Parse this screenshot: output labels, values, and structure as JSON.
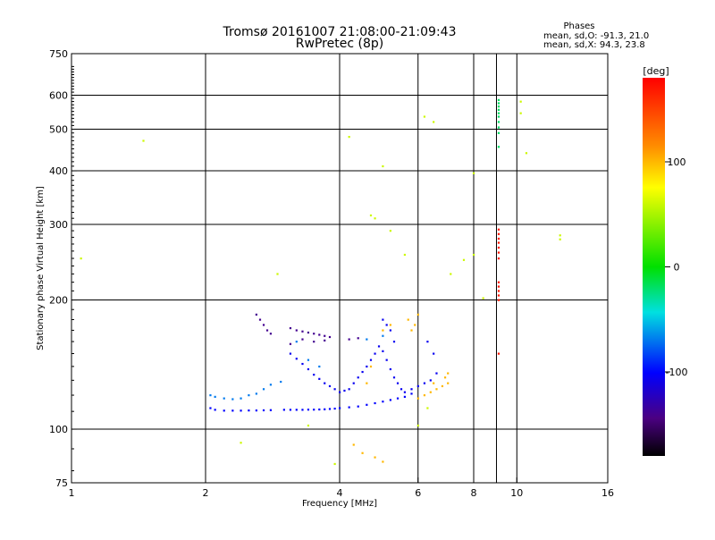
{
  "header": {
    "title_line1": "Tromsø 20161007 21:08:00-21:09:43",
    "title_line2": "RwPretec (8p)",
    "stats_heading": "Phases",
    "stats_o": "mean, sd,O: -91.3, 21.0",
    "stats_x": "mean, sd,X:  94.3, 23.8"
  },
  "colorbar": {
    "label": "[deg]",
    "ticks": [
      "100",
      "0",
      "-100"
    ]
  },
  "chart_data": {
    "type": "scatter",
    "xlabel": "Frequency [MHz]",
    "ylabel": "Stationary phase Virtual Height [km]",
    "x_scale": "log",
    "y_scale": "log",
    "xlim": [
      1,
      16
    ],
    "ylim": [
      75,
      750
    ],
    "x_ticks": [
      "1",
      "2",
      "4",
      "6",
      "8",
      "10",
      "16"
    ],
    "y_ticks": [
      "75",
      "100",
      "200",
      "300",
      "400",
      "500",
      "600",
      "750"
    ],
    "x_grid": [
      2,
      4,
      6,
      8,
      9,
      10
    ],
    "y_grid": [
      100,
      200,
      300,
      400,
      500,
      600
    ],
    "color_range_deg": [
      -180,
      180
    ],
    "series": [
      {
        "trace": "main-trace",
        "phase": -100,
        "points": [
          [
            2.05,
            112
          ],
          [
            2.1,
            111
          ],
          [
            2.2,
            110.5
          ],
          [
            2.3,
            110.5
          ],
          [
            2.4,
            110.5
          ],
          [
            2.5,
            110.6
          ],
          [
            2.6,
            110.6
          ],
          [
            2.7,
            110.7
          ],
          [
            2.8,
            110.8
          ],
          [
            3.0,
            111
          ],
          [
            3.1,
            111
          ],
          [
            3.2,
            111
          ],
          [
            3.3,
            111
          ],
          [
            3.4,
            111.1
          ],
          [
            3.5,
            111.1
          ],
          [
            3.6,
            111.2
          ],
          [
            3.7,
            111.3
          ],
          [
            3.8,
            111.5
          ],
          [
            3.9,
            111.7
          ],
          [
            4.0,
            112
          ],
          [
            4.2,
            112.5
          ],
          [
            4.4,
            113
          ],
          [
            4.6,
            114
          ],
          [
            4.8,
            115
          ],
          [
            5.0,
            116
          ],
          [
            5.2,
            117
          ],
          [
            5.4,
            118
          ],
          [
            5.6,
            119
          ],
          [
            5.8,
            121
          ]
        ]
      },
      {
        "trace": "light-trace",
        "phase": -70,
        "points": [
          [
            2.05,
            120
          ],
          [
            2.1,
            119
          ],
          [
            2.2,
            118
          ],
          [
            2.3,
            117.5
          ],
          [
            2.4,
            118
          ],
          [
            2.5,
            120
          ],
          [
            2.6,
            121
          ],
          [
            2.7,
            124
          ],
          [
            2.8,
            127
          ],
          [
            2.95,
            129
          ],
          [
            3.2,
            160
          ],
          [
            3.4,
            145
          ],
          [
            3.6,
            140
          ],
          [
            4.6,
            162
          ],
          [
            5.0,
            165
          ]
        ]
      },
      {
        "trace": "purple-patch",
        "phase": -140,
        "points": [
          [
            3.1,
            172
          ],
          [
            3.2,
            170
          ],
          [
            3.3,
            169
          ],
          [
            3.4,
            168
          ],
          [
            3.5,
            167
          ],
          [
            3.6,
            166
          ],
          [
            3.7,
            165
          ],
          [
            3.8,
            164
          ],
          [
            3.3,
            162
          ],
          [
            3.5,
            160
          ],
          [
            3.1,
            158
          ],
          [
            3.7,
            161
          ],
          [
            4.2,
            162
          ],
          [
            4.4,
            163
          ],
          [
            2.6,
            185
          ],
          [
            2.65,
            180
          ],
          [
            2.7,
            175
          ],
          [
            2.75,
            170
          ],
          [
            2.8,
            167
          ]
        ]
      },
      {
        "trace": "mid-cloud",
        "phase": -105,
        "points": [
          [
            3.1,
            150
          ],
          [
            3.2,
            146
          ],
          [
            3.3,
            142
          ],
          [
            3.4,
            138
          ],
          [
            3.5,
            134
          ],
          [
            3.6,
            131
          ],
          [
            3.7,
            128
          ],
          [
            3.8,
            126
          ],
          [
            3.9,
            124
          ],
          [
            4.0,
            122
          ],
          [
            4.1,
            123
          ],
          [
            4.2,
            124
          ],
          [
            4.3,
            128
          ],
          [
            4.4,
            132
          ],
          [
            4.5,
            136
          ],
          [
            4.6,
            140
          ],
          [
            4.7,
            145
          ],
          [
            4.8,
            150
          ],
          [
            4.9,
            156
          ],
          [
            5.0,
            152
          ],
          [
            5.1,
            145
          ],
          [
            5.2,
            138
          ],
          [
            5.3,
            132
          ],
          [
            5.4,
            128
          ],
          [
            5.5,
            124
          ],
          [
            5.6,
            122
          ],
          [
            5.8,
            124
          ],
          [
            6.0,
            126
          ],
          [
            6.2,
            128
          ],
          [
            6.4,
            130
          ],
          [
            6.6,
            135
          ],
          [
            5.0,
            180
          ],
          [
            5.1,
            175
          ],
          [
            5.2,
            170
          ],
          [
            5.3,
            160
          ],
          [
            6.5,
            150
          ],
          [
            6.3,
            160
          ]
        ]
      },
      {
        "trace": "warm-cloud",
        "phase": 100,
        "points": [
          [
            6.0,
            118
          ],
          [
            6.2,
            120
          ],
          [
            6.4,
            122
          ],
          [
            6.6,
            124
          ],
          [
            6.8,
            126
          ],
          [
            7.0,
            128
          ],
          [
            6.5,
            128
          ],
          [
            6.9,
            132
          ],
          [
            7.0,
            135
          ],
          [
            5.8,
            170
          ],
          [
            5.9,
            175
          ],
          [
            5.7,
            180
          ],
          [
            6.0,
            185
          ],
          [
            5.0,
            170
          ],
          [
            5.2,
            175
          ],
          [
            4.6,
            128
          ],
          [
            4.7,
            140
          ],
          [
            4.5,
            88
          ],
          [
            4.8,
            86
          ],
          [
            5.0,
            84
          ],
          [
            4.3,
            92
          ]
        ]
      },
      {
        "trace": "column-9mhz",
        "phase": -20,
        "points": [
          [
            9.1,
            585
          ],
          [
            9.1,
            575
          ],
          [
            9.1,
            565
          ],
          [
            9.1,
            555
          ],
          [
            9.1,
            545
          ],
          [
            9.1,
            535
          ],
          [
            9.1,
            520
          ],
          [
            9.1,
            505
          ],
          [
            9.1,
            490
          ],
          [
            9.1,
            455
          ]
        ]
      },
      {
        "trace": "column-9mhz-warm",
        "phase": 170,
        "points": [
          [
            9.1,
            292
          ],
          [
            9.1,
            285
          ],
          [
            9.1,
            278
          ],
          [
            9.1,
            272
          ],
          [
            9.1,
            265
          ],
          [
            9.1,
            258
          ],
          [
            9.1,
            250
          ],
          [
            9.1,
            220
          ],
          [
            9.1,
            215
          ],
          [
            9.1,
            210
          ],
          [
            9.1,
            205
          ],
          [
            9.1,
            200
          ],
          [
            9.1,
            150
          ]
        ]
      },
      {
        "trace": "scattered",
        "phase": 60,
        "points": [
          [
            1.05,
            250
          ],
          [
            1.45,
            470
          ],
          [
            2.4,
            93
          ],
          [
            2.9,
            230
          ],
          [
            3.4,
            102
          ],
          [
            3.9,
            83
          ],
          [
            4.2,
            480
          ],
          [
            4.7,
            315
          ],
          [
            5.0,
            410
          ],
          [
            5.2,
            290
          ],
          [
            5.6,
            255
          ],
          [
            6.5,
            520
          ],
          [
            6.2,
            535
          ],
          [
            7.1,
            230
          ],
          [
            7.6,
            248
          ],
          [
            8.0,
            395
          ],
          [
            8.0,
            255
          ],
          [
            8.4,
            202
          ],
          [
            10.2,
            580
          ],
          [
            10.2,
            545
          ],
          [
            10.5,
            440
          ],
          [
            12.5,
            283
          ],
          [
            12.5,
            277
          ],
          [
            6.0,
            102
          ],
          [
            6.3,
            112
          ],
          [
            4.8,
            310
          ]
        ]
      }
    ]
  }
}
